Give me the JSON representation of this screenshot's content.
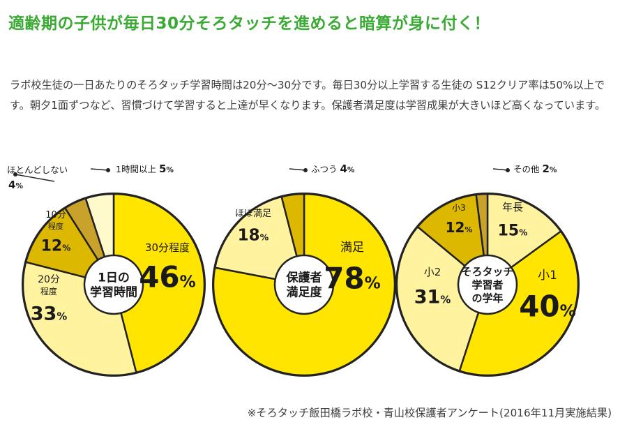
{
  "headline": "適齢期の子供が毎日30分そろタッチを進めると暗算が身に付く！",
  "intro": "ラボ校生徒の一日あたりのそろタッチ学習時間は20分～30分です。毎日30分以上学習する生徒の S12クリア率は50%以上です。朝夕1面ずつなど、習慣づけて学習すると上達が早くなります。保護者満足度は学習成果が大きいほど高くなっています。",
  "footnote": "※そろタッチ飯田橋ラボ校・青山校保護者アンケート(2016年11月実施結果)",
  "colors": {
    "headline": "#3aaa35",
    "yellow": "#ffe500",
    "light_yellow": "#fff3a0",
    "pale_yellow": "#fff9cc",
    "gold": "#ddb800",
    "dark_gold": "#c9a22c",
    "outline": "#222222"
  },
  "chart_data": [
    {
      "type": "pie",
      "center_label": [
        "1日の",
        "学習時間"
      ],
      "slices": [
        {
          "label": "30分程度",
          "value": 46,
          "color": "#ffe500"
        },
        {
          "label": "20分程度",
          "value": 33,
          "color": "#fff3a0"
        },
        {
          "label": "10分程度",
          "value": 12,
          "color": "#ddb800"
        },
        {
          "label": "ほとんどしない",
          "value": 4,
          "color": "#c9a22c"
        },
        {
          "label": "1時間以上",
          "value": 5,
          "color": "#fff9cc"
        }
      ]
    },
    {
      "type": "pie",
      "center_label": [
        "保護者",
        "満足度"
      ],
      "slices": [
        {
          "label": "満足",
          "value": 78,
          "color": "#ffe500"
        },
        {
          "label": "ほぼ満足",
          "value": 18,
          "color": "#fff3a0"
        },
        {
          "label": "ふつう",
          "value": 4,
          "color": "#ddb800"
        }
      ]
    },
    {
      "type": "pie",
      "center_label": [
        "そろタッチ",
        "学習者",
        "の学年"
      ],
      "slices": [
        {
          "label": "年長",
          "value": 15,
          "color": "#fff3a0"
        },
        {
          "label": "小1",
          "value": 40,
          "color": "#ffe500"
        },
        {
          "label": "小2",
          "value": 31,
          "color": "#fff3a0"
        },
        {
          "label": "小3",
          "value": 12,
          "color": "#ddb800"
        },
        {
          "label": "その他",
          "value": 2,
          "color": "#c9a22c"
        }
      ]
    }
  ]
}
